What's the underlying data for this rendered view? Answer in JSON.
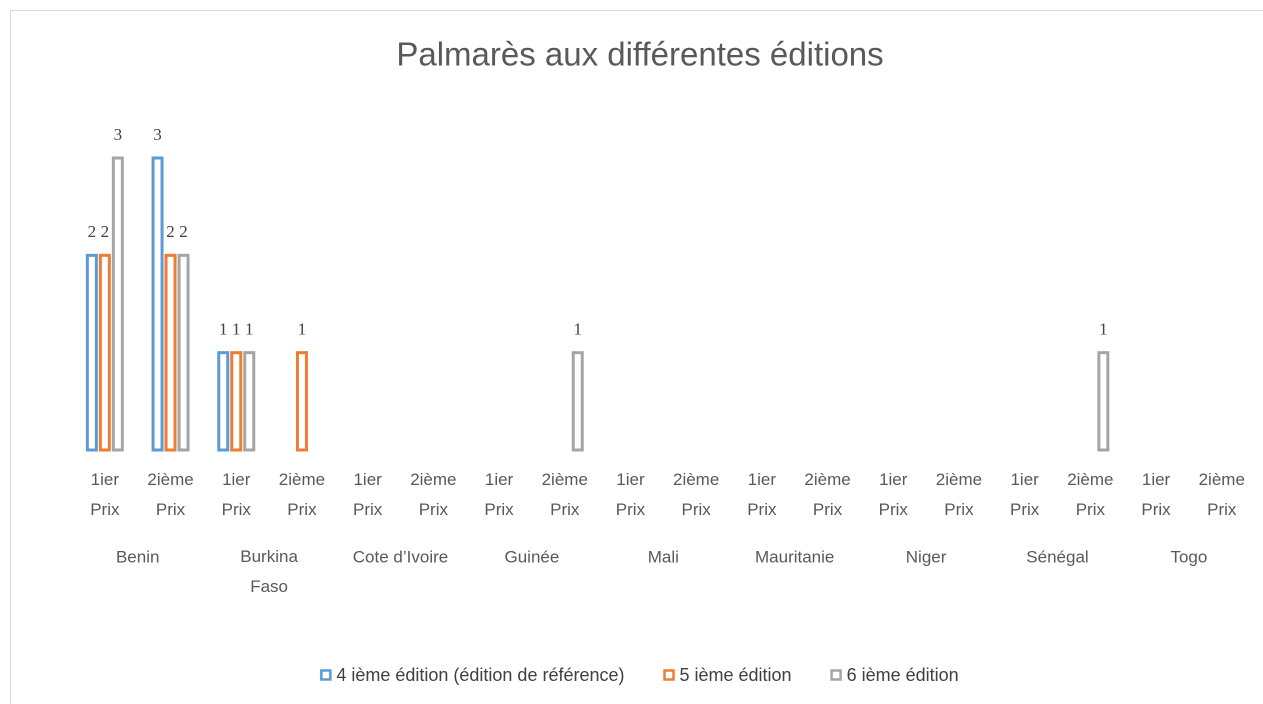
{
  "chart_data": {
    "type": "bar",
    "title": "Palmarès aux différentes éditions",
    "categories": [
      "1ier Prix",
      "2ième Prix",
      "1ier Prix",
      "2ième Prix",
      "1ier Prix",
      "2ième Prix",
      "1ier Prix",
      "2ième Prix",
      "1ier Prix",
      "2ième Prix",
      "1ier Prix",
      "2ième Prix",
      "1ier Prix",
      "2ième Prix",
      "1ier Prix",
      "2ième Prix",
      "1ier Prix",
      "2ième Prix"
    ],
    "groups": [
      "Benin",
      "Burkina Faso",
      "Cote d’Ivoire",
      "Guinée",
      "Mali",
      "Mauritanie",
      "Niger",
      "Sénégal",
      "Togo"
    ],
    "series": [
      {
        "name": "4 ième édition (édition de référence)",
        "color": "#5b9bd5",
        "values": [
          2,
          3,
          1,
          null,
          null,
          null,
          null,
          null,
          null,
          null,
          null,
          null,
          null,
          null,
          null,
          null,
          null,
          null
        ]
      },
      {
        "name": "5 ième édition",
        "color": "#ed7d31",
        "values": [
          2,
          2,
          1,
          1,
          null,
          null,
          null,
          null,
          null,
          null,
          null,
          null,
          null,
          null,
          null,
          null,
          null,
          null
        ]
      },
      {
        "name": "6 ième édition",
        "color": "#a5a5a5",
        "values": [
          3,
          2,
          1,
          null,
          null,
          null,
          null,
          1,
          null,
          null,
          null,
          null,
          null,
          null,
          null,
          1,
          null,
          null
        ]
      }
    ],
    "ylim": [
      0,
      3
    ],
    "legend": "bottom"
  }
}
